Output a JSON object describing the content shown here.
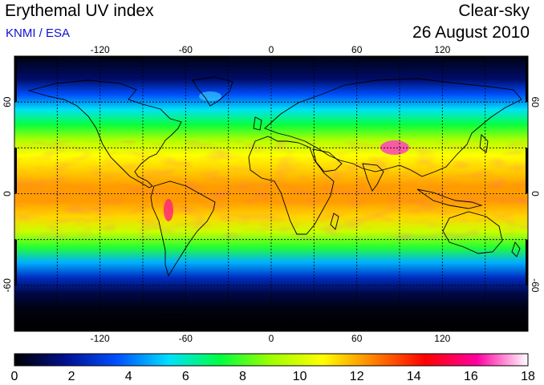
{
  "header": {
    "title": "Erythemal UV index",
    "credit": "KNMI / ESA",
    "condition": "Clear-sky",
    "date": "26 August 2010"
  },
  "map": {
    "projection": "equirectangular",
    "lon_range": [
      -180,
      180
    ],
    "lat_range": [
      -90,
      90
    ],
    "gridlines": "dotted, every 30 degrees",
    "lon_tick_labels": [
      "-120",
      "-60",
      "0",
      "60",
      "120"
    ],
    "lat_tick_labels": [
      "60",
      "0",
      "-60"
    ],
    "lat_tick_labels_right": [
      "60",
      "0",
      "-60"
    ]
  },
  "colorbar": {
    "min": 0,
    "max": 18,
    "tick_labels": [
      "0",
      "2",
      "4",
      "6",
      "8",
      "10",
      "12",
      "14",
      "16",
      "18"
    ],
    "colors": [
      "#000000",
      "#001090",
      "#0050ff",
      "#00e0ff",
      "#00ff40",
      "#a0ff00",
      "#ffff00",
      "#ff8000",
      "#ff0000",
      "#ff00a0",
      "#ffffff"
    ]
  },
  "uv_profile_by_latitude": {
    "latitudes": [
      90,
      75,
      65,
      55,
      45,
      35,
      25,
      15,
      5,
      -5,
      -15,
      -25,
      -35,
      -45,
      -55,
      -65,
      -75,
      -90
    ],
    "uv_index": [
      0.2,
      1.3,
      3.5,
      5.5,
      7.3,
      9.3,
      10.8,
      11.5,
      12.2,
      12.2,
      11.4,
      9.8,
      7.6,
      4.8,
      2.6,
      0.9,
      0.2,
      0
    ]
  }
}
